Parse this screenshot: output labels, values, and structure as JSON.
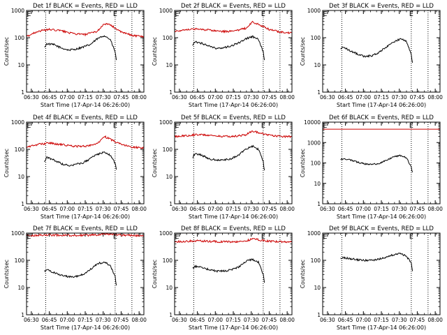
{
  "figure": {
    "xlabel": "Start Time (17-Apr-14 06:26:00)",
    "ylabel": "Counts/sec",
    "x_tick_labels": [
      "06:30",
      "06:45",
      "07:00",
      "07:15",
      "07:30",
      "07:45",
      "08:00"
    ],
    "colors": {
      "events": "#000000",
      "lld": "#cc0000",
      "background": "#ffffff"
    }
  },
  "chart_data": [
    {
      "type": "line",
      "title": "Det 1f BLACK = Events, RED = LLD",
      "ylim": [
        1,
        1000
      ],
      "yscale": "log",
      "y_tick_labels": [
        "1",
        "10",
        "100",
        "1000"
      ],
      "x_range": [
        "06:26",
        "08:04"
      ],
      "markers": [
        {
          "x": "06:28",
          "label": "E"
        },
        {
          "x": "07:40",
          "label": "E"
        }
      ],
      "vlines": [
        "06:42",
        "07:40",
        "07:54"
      ],
      "series": [
        {
          "color": "#000000",
          "x": [
            "06:41",
            "06:43",
            "06:49",
            "06:55",
            "07:01",
            "07:07",
            "07:13",
            "07:19",
            "07:25",
            "07:31",
            "07:36",
            "07:40",
            "07:41"
          ],
          "values": [
            45,
            60,
            55,
            42,
            35,
            38,
            45,
            55,
            90,
            120,
            85,
            30,
            15
          ]
        },
        {
          "color": "#cc0000",
          "x": [
            "06:26",
            "06:35",
            "06:45",
            "06:55",
            "07:05",
            "07:15",
            "07:25",
            "07:31",
            "07:37",
            "07:45",
            "07:55",
            "08:04"
          ],
          "values": [
            110,
            170,
            200,
            180,
            140,
            130,
            170,
            330,
            280,
            160,
            120,
            110
          ]
        }
      ]
    },
    {
      "type": "line",
      "title": "Det 2f BLACK = Events, RED = LLD",
      "ylim": [
        1,
        1000
      ],
      "yscale": "log",
      "y_tick_labels": [
        "1",
        "10",
        "100",
        "1000"
      ],
      "x_range": [
        "06:26",
        "08:04"
      ],
      "markers": [
        {
          "x": "06:28",
          "label": "E"
        },
        {
          "x": "07:40",
          "label": "E"
        }
      ],
      "vlines": [
        "06:42",
        "07:40",
        "07:54"
      ],
      "series": [
        {
          "color": "#000000",
          "x": [
            "06:41",
            "06:43",
            "06:49",
            "06:55",
            "07:01",
            "07:07",
            "07:13",
            "07:19",
            "07:25",
            "07:31",
            "07:36",
            "07:40",
            "07:41"
          ],
          "values": [
            50,
            70,
            62,
            48,
            40,
            42,
            50,
            62,
            90,
            110,
            85,
            30,
            15
          ]
        },
        {
          "color": "#cc0000",
          "x": [
            "06:26",
            "06:35",
            "06:45",
            "06:55",
            "07:05",
            "07:15",
            "07:25",
            "07:31",
            "07:37",
            "07:45",
            "07:55",
            "08:04"
          ],
          "values": [
            170,
            200,
            210,
            190,
            170,
            170,
            220,
            370,
            300,
            200,
            160,
            150
          ]
        }
      ]
    },
    {
      "type": "line",
      "title": "Det 3f BLACK = Events, RED = LLD",
      "ylim": [
        1,
        1000
      ],
      "yscale": "log",
      "y_tick_labels": [
        "1",
        "10",
        "100",
        "1000"
      ],
      "x_range": [
        "06:26",
        "08:04"
      ],
      "markers": [
        {
          "x": "06:28",
          "label": "E"
        },
        {
          "x": "07:40",
          "label": "E"
        }
      ],
      "vlines": [
        "06:42",
        "07:40",
        "07:54"
      ],
      "series": [
        {
          "color": "#000000",
          "x": [
            "06:41",
            "06:43",
            "06:49",
            "06:55",
            "07:01",
            "07:07",
            "07:13",
            "07:19",
            "07:25",
            "07:31",
            "07:36",
            "07:40",
            "07:41"
          ],
          "values": [
            40,
            45,
            33,
            25,
            20,
            22,
            28,
            45,
            70,
            90,
            75,
            25,
            12
          ]
        },
        {
          "color": "#cc0000",
          "x": [
            "06:26",
            "08:04"
          ],
          "values": [
            1000,
            1000
          ]
        }
      ]
    },
    {
      "type": "line",
      "title": "Det 4f BLACK = Events, RED = LLD",
      "ylim": [
        1,
        1000
      ],
      "yscale": "log",
      "y_tick_labels": [
        "1",
        "10",
        "100",
        "1000"
      ],
      "x_range": [
        "06:26",
        "08:04"
      ],
      "markers": [
        {
          "x": "06:28",
          "label": "E"
        },
        {
          "x": "07:40",
          "label": "E"
        }
      ],
      "vlines": [
        "06:42",
        "07:40",
        "07:54"
      ],
      "series": [
        {
          "color": "#000000",
          "x": [
            "06:41",
            "06:43",
            "06:49",
            "06:55",
            "07:01",
            "07:07",
            "07:13",
            "07:19",
            "07:25",
            "07:31",
            "07:36",
            "07:40",
            "07:41"
          ],
          "values": [
            35,
            50,
            40,
            30,
            25,
            28,
            32,
            45,
            65,
            80,
            60,
            30,
            18
          ]
        },
        {
          "color": "#cc0000",
          "x": [
            "06:26",
            "06:35",
            "06:45",
            "06:55",
            "07:05",
            "07:15",
            "07:25",
            "07:31",
            "07:37",
            "07:45",
            "07:55",
            "08:04"
          ],
          "values": [
            120,
            150,
            170,
            150,
            130,
            130,
            160,
            300,
            220,
            150,
            120,
            115
          ]
        }
      ]
    },
    {
      "type": "line",
      "title": "Det 5f BLACK = Events, RED = LLD",
      "ylim": [
        1,
        1000
      ],
      "yscale": "log",
      "y_tick_labels": [
        "1",
        "10",
        "100",
        "1000"
      ],
      "x_range": [
        "06:26",
        "08:04"
      ],
      "markers": [
        {
          "x": "06:28",
          "label": "E"
        },
        {
          "x": "07:40",
          "label": "E"
        }
      ],
      "vlines": [
        "06:42",
        "07:40",
        "07:54"
      ],
      "series": [
        {
          "color": "#000000",
          "x": [
            "06:41",
            "06:43",
            "06:49",
            "06:55",
            "07:01",
            "07:07",
            "07:13",
            "07:19",
            "07:25",
            "07:31",
            "07:36",
            "07:40",
            "07:41"
          ],
          "values": [
            50,
            70,
            60,
            45,
            40,
            40,
            45,
            60,
            100,
            130,
            100,
            35,
            17
          ]
        },
        {
          "color": "#cc0000",
          "x": [
            "06:26",
            "06:35",
            "06:45",
            "06:55",
            "07:05",
            "07:15",
            "07:25",
            "07:31",
            "07:37",
            "07:45",
            "07:55",
            "08:04"
          ],
          "values": [
            300,
            320,
            350,
            330,
            300,
            300,
            340,
            480,
            400,
            330,
            300,
            290
          ]
        }
      ]
    },
    {
      "type": "line",
      "title": "Det 6f BLACK = Events, RED = LLD",
      "ylim": [
        1,
        10000
      ],
      "yscale": "log",
      "y_tick_labels": [
        "1",
        "10",
        "100",
        "1000",
        "10000"
      ],
      "x_range": [
        "06:26",
        "08:04"
      ],
      "markers": [
        {
          "x": "06:28",
          "label": "E"
        },
        {
          "x": "07:40",
          "label": "E"
        }
      ],
      "vlines": [
        "06:42",
        "07:40",
        "07:54"
      ],
      "series": [
        {
          "color": "#000000",
          "x": [
            "06:41",
            "06:43",
            "06:49",
            "06:55",
            "07:01",
            "07:07",
            "07:13",
            "07:19",
            "07:25",
            "07:31",
            "07:36",
            "07:40",
            "07:41"
          ],
          "values": [
            150,
            160,
            140,
            110,
            90,
            85,
            95,
            130,
            200,
            230,
            180,
            60,
            35
          ]
        },
        {
          "color": "#cc0000",
          "x": [
            "06:26",
            "08:04"
          ],
          "values": [
            4500,
            4500
          ]
        }
      ]
    },
    {
      "type": "line",
      "title": "Det 7f BLACK = Events, RED = LLD",
      "ylim": [
        1,
        1000
      ],
      "yscale": "log",
      "y_tick_labels": [
        "1",
        "10",
        "100",
        "1000"
      ],
      "x_range": [
        "06:26",
        "08:04"
      ],
      "markers": [
        {
          "x": "06:28",
          "label": "E"
        },
        {
          "x": "07:40",
          "label": "E"
        }
      ],
      "vlines": [
        "06:42",
        "07:40",
        "07:54"
      ],
      "series": [
        {
          "color": "#000000",
          "x": [
            "06:41",
            "06:43",
            "06:49",
            "06:55",
            "07:01",
            "07:07",
            "07:13",
            "07:19",
            "07:25",
            "07:31",
            "07:36",
            "07:40",
            "07:41"
          ],
          "values": [
            40,
            45,
            35,
            28,
            25,
            25,
            30,
            45,
            75,
            85,
            65,
            25,
            12
          ]
        },
        {
          "color": "#cc0000",
          "x": [
            "06:26",
            "06:35",
            "06:45",
            "06:55",
            "07:05",
            "07:15",
            "07:25",
            "07:31",
            "07:37",
            "07:45",
            "07:55",
            "08:04"
          ],
          "values": [
            800,
            820,
            850,
            830,
            820,
            830,
            860,
            950,
            900,
            850,
            820,
            800
          ]
        }
      ]
    },
    {
      "type": "line",
      "title": "Det 8f BLACK = Events, RED = LLD",
      "ylim": [
        1,
        1000
      ],
      "yscale": "log",
      "y_tick_labels": [
        "1",
        "10",
        "100",
        "1000"
      ],
      "x_range": [
        "06:26",
        "08:04"
      ],
      "markers": [
        {
          "x": "06:28",
          "label": "E"
        },
        {
          "x": "07:40",
          "label": "E"
        }
      ],
      "vlines": [
        "06:42",
        "07:40",
        "07:54"
      ],
      "series": [
        {
          "color": "#000000",
          "x": [
            "06:41",
            "06:43",
            "06:49",
            "06:55",
            "07:01",
            "07:07",
            "07:13",
            "07:19",
            "07:25",
            "07:31",
            "07:36",
            "07:40",
            "07:41"
          ],
          "values": [
            50,
            60,
            55,
            45,
            40,
            40,
            45,
            55,
            90,
            110,
            85,
            30,
            15
          ]
        },
        {
          "color": "#cc0000",
          "x": [
            "06:26",
            "06:35",
            "06:45",
            "06:55",
            "07:05",
            "07:15",
            "07:25",
            "07:31",
            "07:37",
            "07:45",
            "07:55",
            "08:04"
          ],
          "values": [
            480,
            500,
            520,
            500,
            480,
            480,
            500,
            620,
            560,
            500,
            480,
            470
          ]
        }
      ]
    },
    {
      "type": "line",
      "title": "Det 9f BLACK = Events, RED = LLD",
      "ylim": [
        1,
        1000
      ],
      "yscale": "log",
      "y_tick_labels": [
        "1",
        "10",
        "100",
        "1000"
      ],
      "x_range": [
        "06:26",
        "08:04"
      ],
      "markers": [
        {
          "x": "06:28",
          "label": "E"
        },
        {
          "x": "07:40",
          "label": "E"
        }
      ],
      "vlines": [
        "06:42",
        "07:40",
        "07:54"
      ],
      "series": [
        {
          "color": "#000000",
          "x": [
            "06:41",
            "06:43",
            "06:49",
            "06:55",
            "07:01",
            "07:07",
            "07:13",
            "07:19",
            "07:25",
            "07:31",
            "07:36",
            "07:40",
            "07:41"
          ],
          "values": [
            120,
            125,
            115,
            105,
            100,
            100,
            110,
            130,
            160,
            180,
            140,
            80,
            40
          ]
        }
      ]
    }
  ]
}
